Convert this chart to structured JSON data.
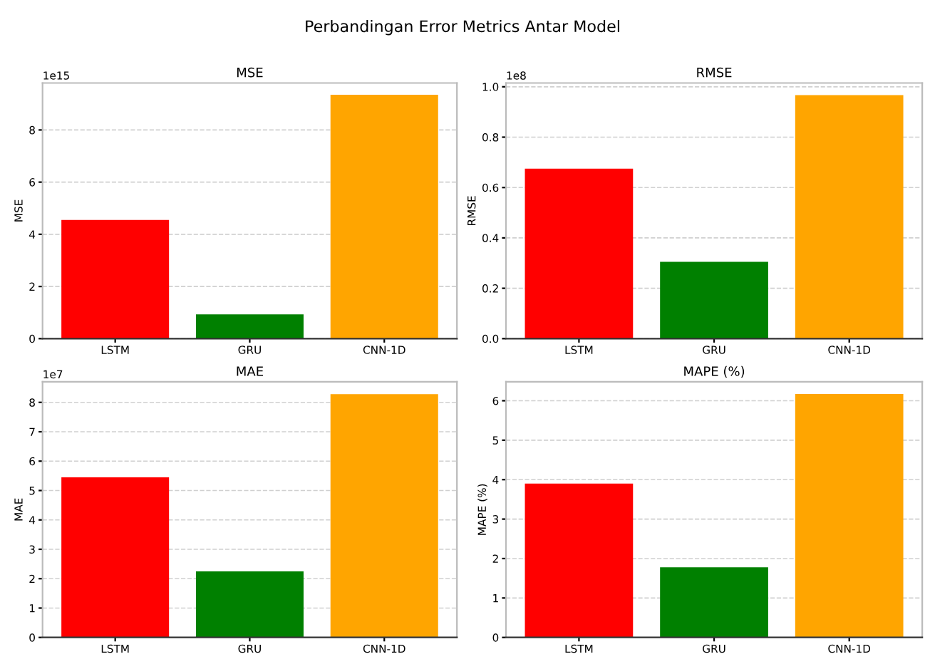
{
  "chart_data": [
    {
      "type": "bar",
      "title": "MSE",
      "subtitle": "Perbandingan Error Metrics Antar Model",
      "ylabel": "MSE",
      "annotations": [
        "1e15"
      ],
      "categories": [
        "LSTM",
        "GRU",
        "CNN-1D"
      ],
      "values": [
        4.55,
        0.93,
        9.35
      ],
      "colors": [
        "#ff0000",
        "#008000",
        "#ffa500"
      ],
      "ylim": [
        0,
        9.8
      ],
      "yticks": [
        0,
        2,
        4,
        6,
        8
      ],
      "grid": "y"
    },
    {
      "type": "bar",
      "title": "RMSE",
      "ylabel": "RMSE",
      "annotations": [
        "1e8"
      ],
      "categories": [
        "LSTM",
        "GRU",
        "CNN-1D"
      ],
      "values": [
        0.675,
        0.305,
        0.967
      ],
      "colors": [
        "#ff0000",
        "#008000",
        "#ffa500"
      ],
      "ylim": [
        0,
        1.015
      ],
      "yticks": [
        {
          "value": 0,
          "label": "0.0"
        },
        0.2,
        0.4,
        0.6,
        0.8,
        {
          "value": 1,
          "label": "1.0"
        }
      ],
      "grid": "y"
    },
    {
      "type": "bar",
      "title": "MAE",
      "ylabel": "MAE",
      "annotations": [
        "1e7"
      ],
      "categories": [
        "LSTM",
        "GRU",
        "CNN-1D"
      ],
      "values": [
        5.45,
        2.25,
        8.28
      ],
      "colors": [
        "#ff0000",
        "#008000",
        "#ffa500"
      ],
      "ylim": [
        0,
        8.7
      ],
      "yticks": [
        0,
        1,
        2,
        3,
        4,
        5,
        6,
        7,
        8
      ],
      "grid": "y"
    },
    {
      "type": "bar",
      "title": "MAPE (%)",
      "ylabel": "MAPE (%)",
      "categories": [
        "LSTM",
        "GRU",
        "CNN-1D"
      ],
      "values": [
        3.9,
        1.78,
        6.17
      ],
      "colors": [
        "#ff0000",
        "#008000",
        "#ffa500"
      ],
      "ylim": [
        0,
        6.48
      ],
      "yticks": [
        0,
        1,
        2,
        3,
        4,
        5,
        6
      ],
      "grid": "y"
    }
  ]
}
